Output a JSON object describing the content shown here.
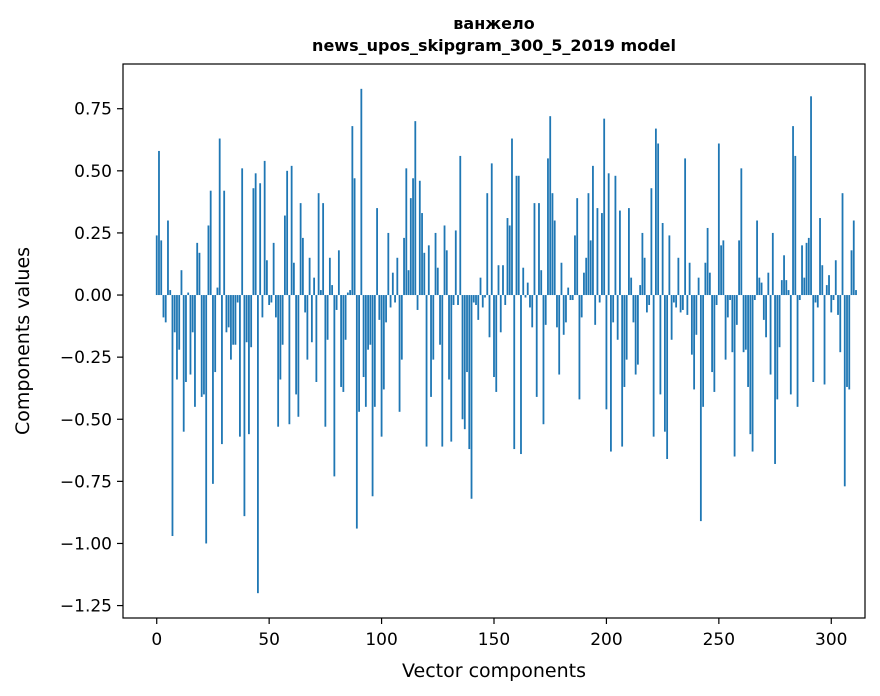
{
  "chart_data": {
    "type": "bar",
    "title": "ванжело\nnews_upos_skipgram_300_5_2019 model",
    "title_lines": [
      "ванжело",
      "news_upos_skipgram_300_5_2019 model"
    ],
    "xlabel": "Vector components",
    "ylabel": "Components values",
    "xlim": [
      -15,
      315
    ],
    "ylim": [
      -1.3,
      0.93
    ],
    "xticks": [
      0,
      50,
      100,
      150,
      200,
      250,
      300
    ],
    "yticks": [
      -1.25,
      -1.0,
      -0.75,
      -0.5,
      -0.25,
      0.0,
      0.25,
      0.5,
      0.75
    ],
    "ytick_labels": [
      "−1.25",
      "−1.00",
      "−0.75",
      "−0.50",
      "−0.25",
      "0.00",
      "0.25",
      "0.50",
      "0.75"
    ],
    "xtick_labels": [
      "0",
      "50",
      "100",
      "150",
      "200",
      "250",
      "300"
    ],
    "bar_color": "#1f77b4",
    "values": [
      0.24,
      0.58,
      0.22,
      -0.09,
      -0.11,
      0.3,
      0.02,
      -0.97,
      -0.15,
      -0.34,
      -0.22,
      0.1,
      -0.55,
      -0.35,
      0.01,
      -0.32,
      -0.15,
      -0.45,
      0.21,
      0.17,
      -0.41,
      -0.4,
      -1.0,
      0.28,
      0.42,
      -0.76,
      -0.31,
      0.03,
      0.63,
      -0.6,
      0.42,
      -0.15,
      -0.13,
      -0.26,
      -0.2,
      -0.2,
      -0.03,
      -0.57,
      0.51,
      -0.89,
      -0.19,
      -0.56,
      -0.21,
      0.43,
      0.49,
      -1.2,
      0.45,
      -0.09,
      0.54,
      0.14,
      -0.04,
      -0.03,
      0.21,
      -0.09,
      -0.53,
      -0.34,
      -0.2,
      0.32,
      0.5,
      -0.52,
      0.52,
      0.13,
      -0.4,
      -0.49,
      0.37,
      0.23,
      -0.07,
      -0.26,
      0.15,
      -0.19,
      0.07,
      -0.35,
      0.41,
      0.02,
      0.37,
      -0.53,
      -0.18,
      0.15,
      0.04,
      -0.73,
      -0.06,
      0.18,
      -0.37,
      -0.39,
      -0.18,
      0.01,
      0.02,
      0.68,
      0.47,
      -0.94,
      -0.47,
      0.83,
      -0.33,
      -0.45,
      -0.22,
      -0.2,
      -0.81,
      -0.45,
      0.35,
      -0.1,
      -0.57,
      -0.38,
      -0.11,
      0.25,
      -0.05,
      0.09,
      -0.03,
      0.15,
      -0.47,
      -0.26,
      0.23,
      0.51,
      0.1,
      0.39,
      0.47,
      0.7,
      -0.06,
      0.46,
      0.33,
      0.17,
      -0.61,
      0.2,
      -0.41,
      -0.26,
      0.25,
      0.11,
      -0.2,
      -0.61,
      0.28,
      0.18,
      -0.34,
      -0.59,
      -0.04,
      0.26,
      -0.04,
      0.56,
      -0.5,
      -0.54,
      -0.31,
      -0.62,
      -0.82,
      -0.03,
      -0.04,
      -0.1,
      0.07,
      -0.05,
      -0.01,
      0.41,
      -0.17,
      0.53,
      -0.33,
      -0.39,
      0.12,
      -0.15,
      0.12,
      -0.04,
      0.31,
      0.28,
      0.63,
      -0.62,
      0.48,
      0.48,
      -0.64,
      0.11,
      -0.01,
      0.05,
      -0.05,
      -0.13,
      0.37,
      -0.41,
      0.37,
      0.1,
      -0.52,
      -0.12,
      0.55,
      0.72,
      0.41,
      0.3,
      -0.13,
      -0.32,
      0.13,
      -0.16,
      -0.11,
      0.03,
      -0.02,
      -0.02,
      0.24,
      0.39,
      -0.42,
      -0.09,
      0.09,
      0.15,
      0.41,
      0.22,
      0.52,
      -0.12,
      0.35,
      -0.03,
      0.33,
      0.71,
      -0.46,
      0.49,
      -0.63,
      -0.11,
      0.48,
      -0.18,
      0.34,
      -0.61,
      -0.37,
      -0.26,
      0.35,
      0.07,
      -0.11,
      -0.32,
      -0.28,
      0.04,
      0.25,
      0.15,
      -0.07,
      -0.04,
      0.43,
      -0.57,
      0.67,
      0.61,
      -0.4,
      0.29,
      -0.55,
      -0.66,
      0.24,
      -0.18,
      -0.03,
      -0.05,
      0.15,
      -0.07,
      -0.06,
      0.55,
      -0.08,
      0.13,
      -0.24,
      -0.38,
      -0.16,
      0.07,
      -0.91,
      -0.45,
      0.13,
      0.27,
      0.09,
      -0.31,
      -0.39,
      -0.04,
      0.61,
      0.2,
      0.22,
      -0.26,
      -0.09,
      -0.02,
      -0.23,
      -0.65,
      -0.12,
      0.22,
      0.51,
      -0.23,
      -0.22,
      -0.37,
      -0.56,
      -0.63,
      -0.02,
      0.3,
      0.07,
      0.05,
      -0.1,
      -0.17,
      0.09,
      -0.32,
      0.25,
      -0.68,
      -0.42,
      -0.21,
      0.06,
      0.16,
      0.06,
      0.02,
      -0.4,
      0.68,
      0.56,
      -0.45,
      -0.02,
      0.2,
      0.07,
      0.21,
      0.23,
      0.8,
      -0.35,
      -0.03,
      -0.05,
      0.31,
      0.12,
      -0.36,
      0.04,
      0.08,
      -0.07,
      -0.02,
      0.14,
      -0.08,
      -0.23,
      0.41,
      -0.77,
      -0.37,
      -0.38,
      0.18,
      0.3,
      0.02
    ]
  }
}
